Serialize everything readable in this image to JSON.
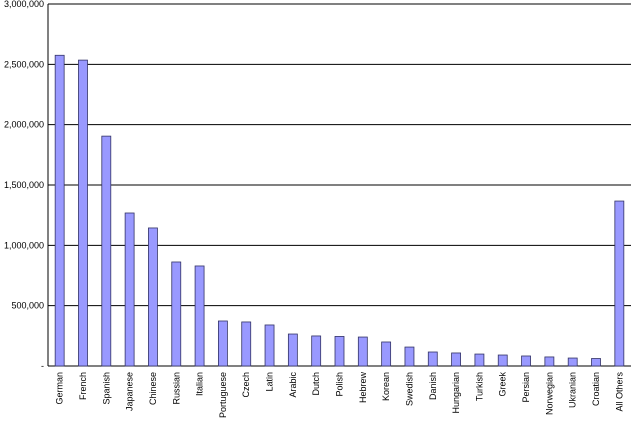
{
  "chart_data": {
    "type": "bar",
    "categories": [
      "German",
      "French",
      "Spanish",
      "Japanese",
      "Chinese",
      "Russian",
      "Italian",
      "Portuguese",
      "Czech",
      "Latin",
      "Arabic",
      "Dutch",
      "Polish",
      "Hebrew",
      "Korean",
      "Swedish",
      "Danish",
      "Hungarian",
      "Turkish",
      "Greek",
      "Persian",
      "Norwegian",
      "Ukranian",
      "Croatian",
      "All Others"
    ],
    "values": [
      2575000,
      2535000,
      1905000,
      1268000,
      1144000,
      862000,
      829000,
      373000,
      365000,
      340000,
      265000,
      249000,
      245000,
      240000,
      199000,
      157000,
      116000,
      108000,
      99000,
      91000,
      83000,
      75000,
      66000,
      62000,
      1367000
    ],
    "color": "#9999ff",
    "ylim": [
      0,
      3000000
    ],
    "yticks": [
      {
        "value": 0,
        "label": "-"
      },
      {
        "value": 500000,
        "label": "500,000"
      },
      {
        "value": 1000000,
        "label": "1,000,000"
      },
      {
        "value": 1500000,
        "label": "1,500,000"
      },
      {
        "value": 2000000,
        "label": "2,000,000"
      },
      {
        "value": 2500000,
        "label": "2,500,000"
      },
      {
        "value": 3000000,
        "label": "3,000,000"
      }
    ],
    "grid": true
  }
}
